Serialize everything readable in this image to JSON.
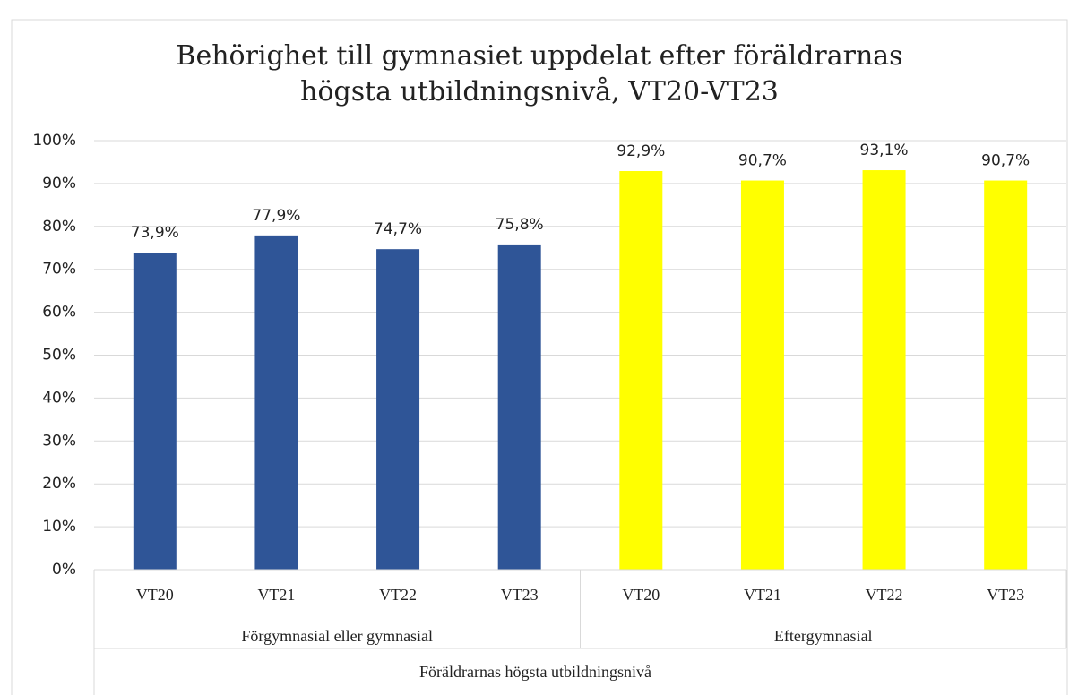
{
  "chart_data": {
    "type": "bar",
    "title": [
      "Behörighet till gymnasiet uppdelat efter föräldrarnas",
      "högsta utbildningsnivå, VT20-VT23"
    ],
    "axis_label": "Föräldrarnas högsta utbildningsnivå",
    "groups": [
      {
        "name": "Förgymnasial eller gymnasial",
        "color": "#2f5597",
        "categories": [
          "VT20",
          "VT21",
          "VT22",
          "VT23"
        ],
        "values": [
          73.9,
          77.9,
          74.7,
          75.8
        ],
        "value_labels": [
          "73,9%",
          "77,9%",
          "74,7%",
          "75,8%"
        ]
      },
      {
        "name": "Eftergymnasial",
        "color": "#ffff00",
        "categories": [
          "VT20",
          "VT21",
          "VT22",
          "VT23"
        ],
        "values": [
          92.9,
          90.7,
          93.1,
          90.7
        ],
        "value_labels": [
          "92,9%",
          "90,7%",
          "93,1%",
          "90,7%"
        ]
      }
    ],
    "ylim": [
      0,
      100
    ],
    "yticks": [
      {
        "value": 0,
        "label": "0%"
      },
      {
        "value": 10,
        "label": "10%"
      },
      {
        "value": 20,
        "label": "20%"
      },
      {
        "value": 30,
        "label": "30%"
      },
      {
        "value": 40,
        "label": "40%"
      },
      {
        "value": 50,
        "label": "50%"
      },
      {
        "value": 60,
        "label": "60%"
      },
      {
        "value": 70,
        "label": "70%"
      },
      {
        "value": 80,
        "label": "80%"
      },
      {
        "value": 90,
        "label": "90%"
      },
      {
        "value": 100,
        "label": "100%"
      }
    ],
    "grid": true
  }
}
